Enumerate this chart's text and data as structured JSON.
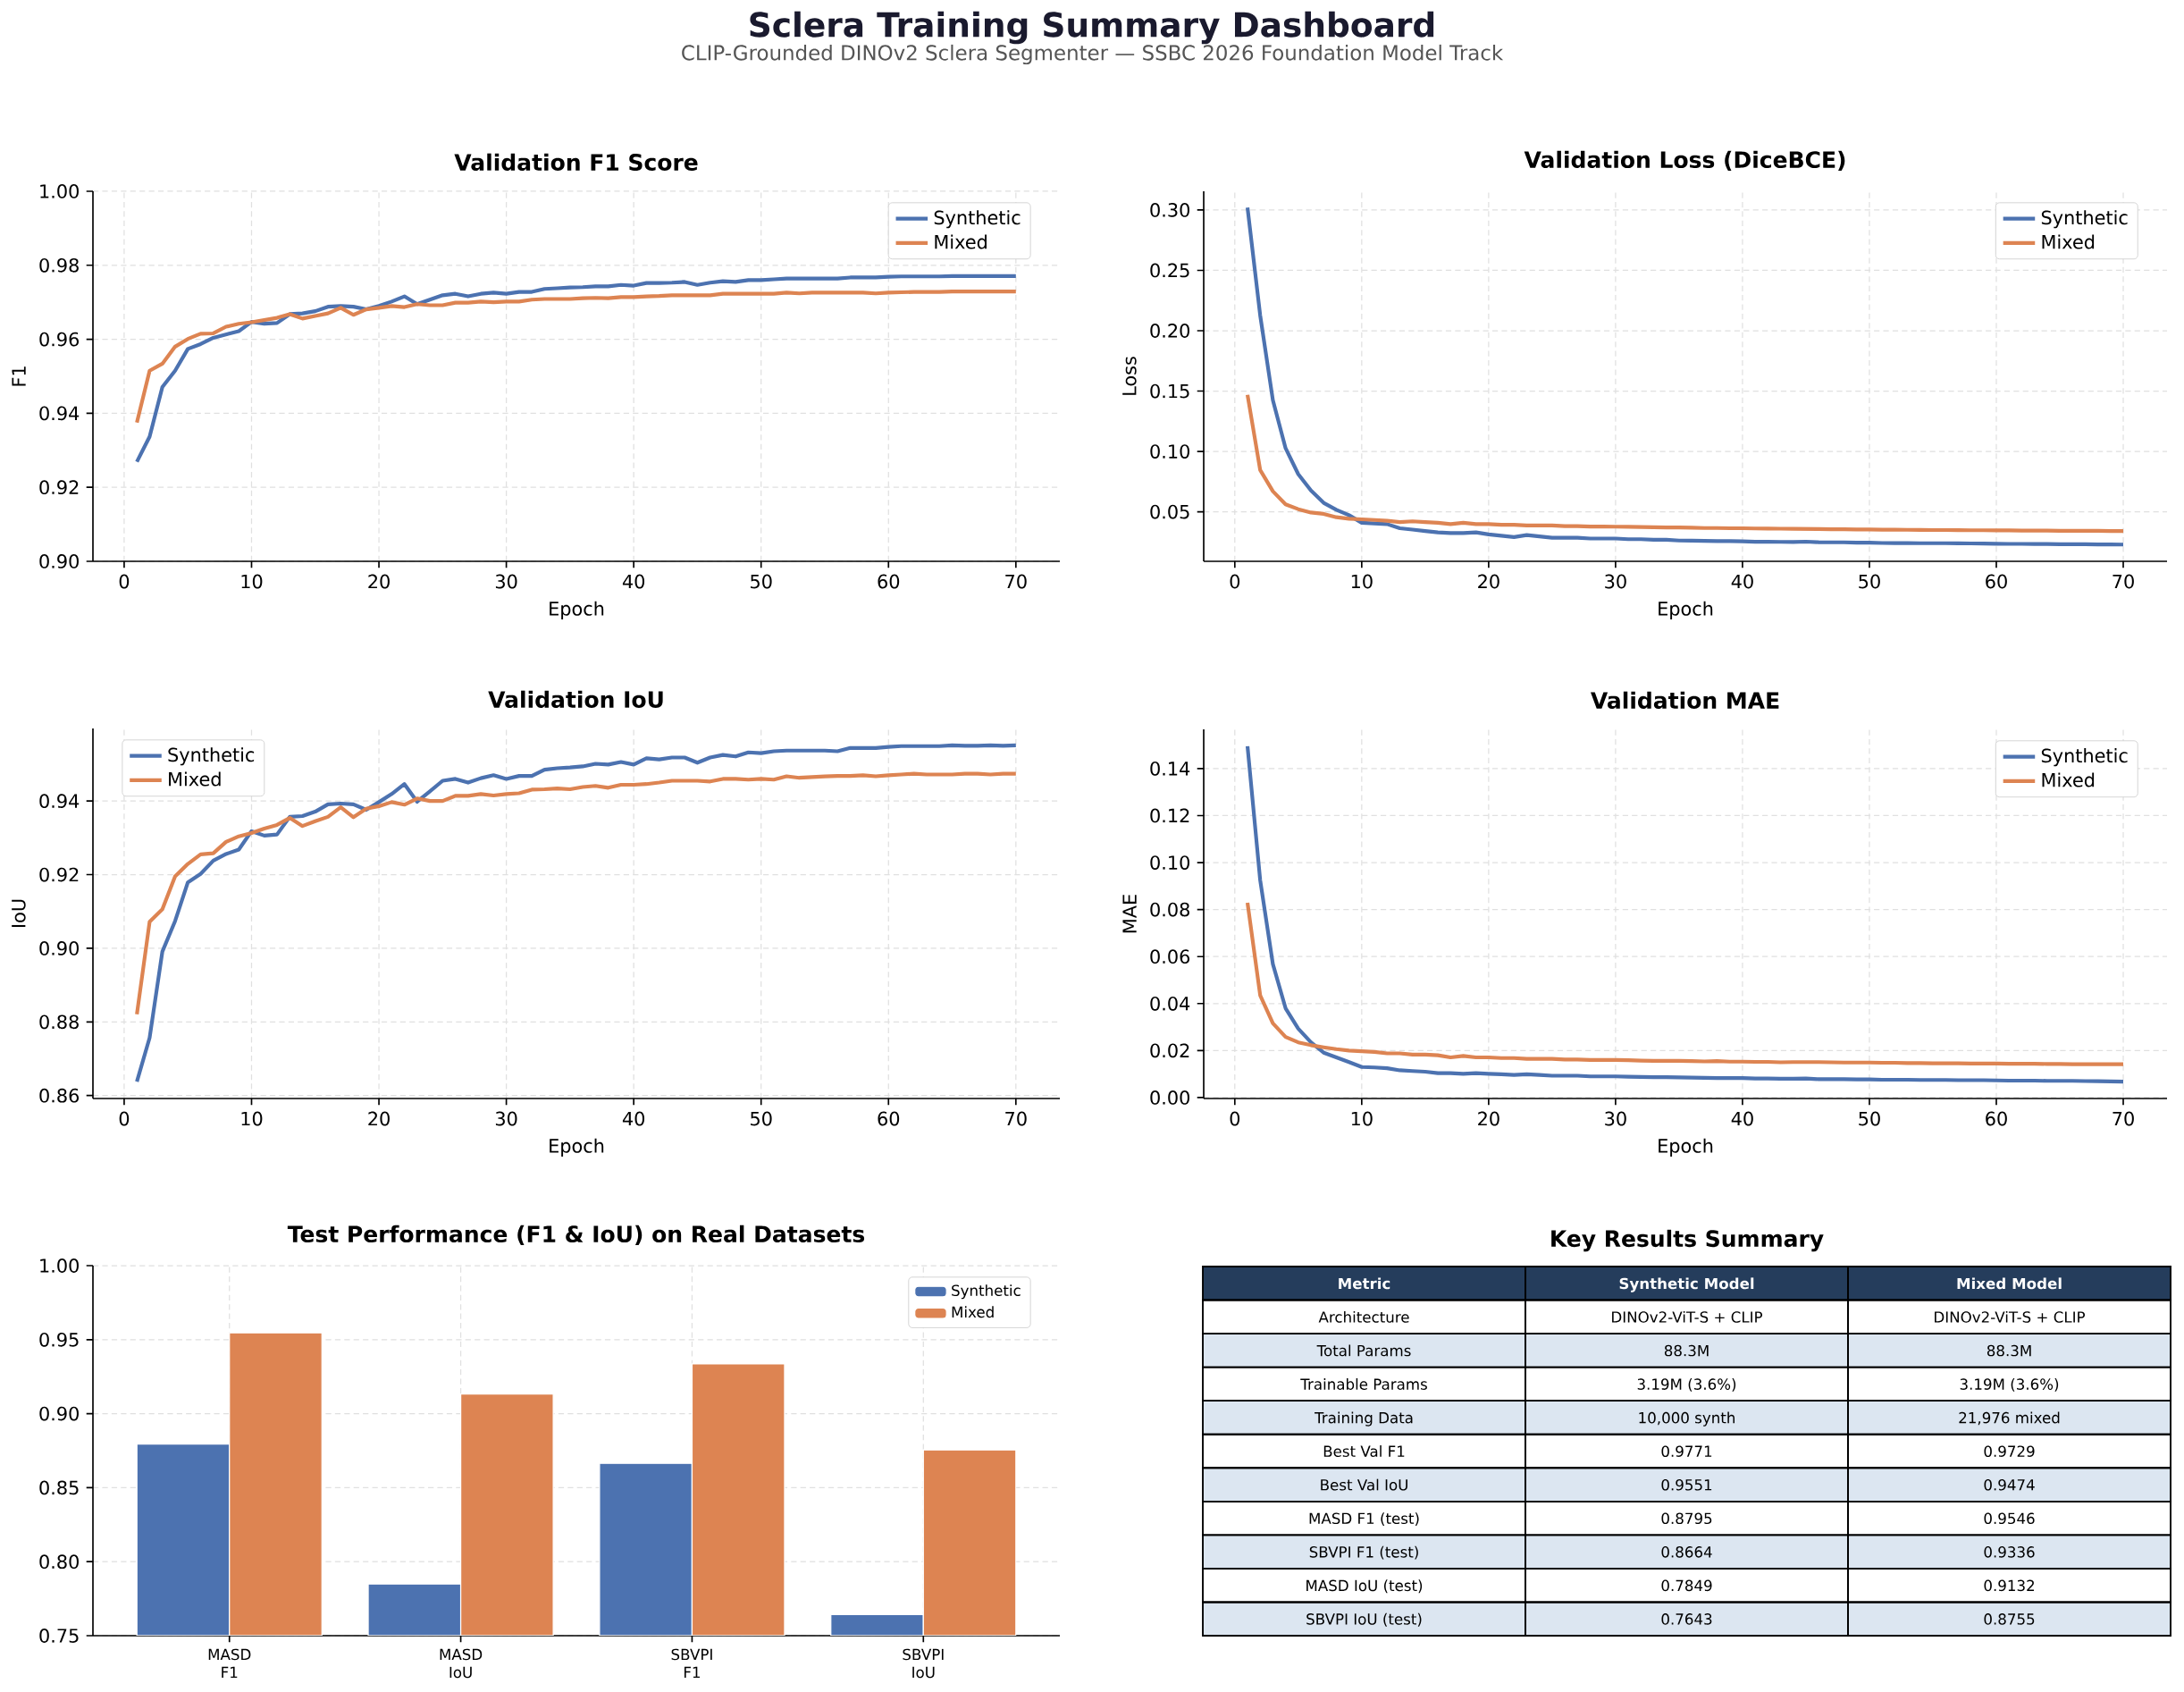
{
  "chart_data": [
    {
      "type": "other",
      "title": "Sclera Training Summary Dashboard",
      "subtitle": "CLIP-Grounded DINOv2 Sclera Segmenter — SSBC 2026 Foundation Model Track"
    },
    {
      "type": "line",
      "title": "Validation F1 Score",
      "xlabel": "Epoch",
      "ylabel": "F1",
      "x": [
        1,
        2,
        3,
        4,
        5,
        6,
        7,
        8,
        9,
        10,
        11,
        12,
        13,
        14,
        15,
        16,
        17,
        18,
        19,
        20,
        21,
        22,
        23,
        24,
        25,
        26,
        27,
        28,
        29,
        30,
        31,
        32,
        33,
        34,
        35,
        36,
        37,
        38,
        39,
        40,
        41,
        42,
        43,
        44,
        45,
        46,
        47,
        48,
        49,
        50,
        51,
        52,
        53,
        54,
        55,
        56,
        57,
        58,
        59,
        60,
        61,
        62,
        63,
        64,
        65,
        66,
        67,
        68,
        69,
        70
      ],
      "xlim": [
        -2.45,
        73.45
      ],
      "ylim": [
        0.9,
        1.0
      ],
      "xticks": [
        0,
        10,
        20,
        30,
        40,
        50,
        60,
        70
      ],
      "yticks": [
        {
          "value": 0.9,
          "label": "0.90"
        },
        0.92,
        0.94,
        0.96,
        0.98,
        {
          "value": 1.0,
          "label": "1.00"
        }
      ],
      "grid": true,
      "legend": "top right",
      "series": [
        {
          "name": "Synthetic",
          "color": "#4c72b0",
          "values": [
            0.9269,
            0.9337,
            0.9471,
            0.9515,
            0.9574,
            0.9587,
            0.9604,
            0.9613,
            0.9622,
            0.9647,
            0.9642,
            0.9644,
            0.9668,
            0.967,
            0.9676,
            0.9688,
            0.969,
            0.9688,
            0.9681,
            0.969,
            0.9702,
            0.9716,
            0.9695,
            0.9707,
            0.9719,
            0.9723,
            0.9716,
            0.9723,
            0.9726,
            0.9723,
            0.9728,
            0.9728,
            0.9736,
            0.9738,
            0.974,
            0.9741,
            0.9743,
            0.9743,
            0.9747,
            0.9745,
            0.9752,
            0.9752,
            0.9753,
            0.9755,
            0.9747,
            0.9753,
            0.9757,
            0.9755,
            0.976,
            0.976,
            0.9762,
            0.9764,
            0.9764,
            0.9764,
            0.9764,
            0.9764,
            0.9767,
            0.9767,
            0.9767,
            0.9769,
            0.977,
            0.977,
            0.977,
            0.977,
            0.9771,
            0.9771,
            0.9771,
            0.9771,
            0.9771,
            0.9771
          ]
        },
        {
          "name": "Mixed",
          "color": "#dd8452",
          "values": [
            0.9375,
            0.9515,
            0.9534,
            0.958,
            0.9601,
            0.9615,
            0.9616,
            0.9634,
            0.9642,
            0.9646,
            0.9652,
            0.9658,
            0.9668,
            0.9656,
            0.9663,
            0.967,
            0.9685,
            0.9666,
            0.9681,
            0.9685,
            0.969,
            0.9687,
            0.9695,
            0.9692,
            0.9692,
            0.9699,
            0.9699,
            0.9702,
            0.97,
            0.9702,
            0.9702,
            0.9707,
            0.9709,
            0.9709,
            0.9709,
            0.9711,
            0.9712,
            0.9711,
            0.9714,
            0.9714,
            0.9716,
            0.9717,
            0.9719,
            0.9719,
            0.9719,
            0.9719,
            0.9723,
            0.9723,
            0.9723,
            0.9723,
            0.9723,
            0.9726,
            0.9724,
            0.9726,
            0.9726,
            0.9726,
            0.9726,
            0.9726,
            0.9724,
            0.9726,
            0.9727,
            0.9728,
            0.9728,
            0.9728,
            0.9729,
            0.9729,
            0.9729,
            0.9729,
            0.9729,
            0.9729
          ]
        }
      ]
    },
    {
      "type": "line",
      "title": "Validation Loss (DiceBCE)",
      "xlabel": "Epoch",
      "ylabel": "Loss",
      "x": [
        1,
        2,
        3,
        4,
        5,
        6,
        7,
        8,
        9,
        10,
        11,
        12,
        13,
        14,
        15,
        16,
        17,
        18,
        19,
        20,
        21,
        22,
        23,
        24,
        25,
        26,
        27,
        28,
        29,
        30,
        31,
        32,
        33,
        34,
        35,
        36,
        37,
        38,
        39,
        40,
        41,
        42,
        43,
        44,
        45,
        46,
        47,
        48,
        49,
        50,
        51,
        52,
        53,
        54,
        55,
        56,
        57,
        58,
        59,
        60,
        61,
        62,
        63,
        64,
        65,
        66,
        67,
        68,
        69,
        70
      ],
      "xlim": [
        -2.45,
        73.45
      ],
      "ylim": [
        0.009,
        0.3155
      ],
      "xticks": [
        0,
        10,
        20,
        30,
        40,
        50,
        60,
        70
      ],
      "yticks": [
        0.05,
        {
          "value": 0.1,
          "label": "0.10"
        },
        0.15,
        {
          "value": 0.2,
          "label": "0.20"
        },
        0.25,
        {
          "value": 0.3,
          "label": "0.30"
        }
      ],
      "grid": true,
      "legend": "top right",
      "series": [
        {
          "name": "Synthetic",
          "color": "#4c72b0",
          "values": [
            0.302,
            0.2127,
            0.1424,
            0.1027,
            0.0812,
            0.0676,
            0.0574,
            0.0517,
            0.0472,
            0.0409,
            0.0404,
            0.0398,
            0.0364,
            0.0353,
            0.0341,
            0.033,
            0.0324,
            0.0324,
            0.033,
            0.0313,
            0.0302,
            0.0291,
            0.0307,
            0.0296,
            0.0285,
            0.0285,
            0.0285,
            0.0279,
            0.0279,
            0.0279,
            0.0273,
            0.0273,
            0.0268,
            0.0268,
            0.0262,
            0.0261,
            0.0259,
            0.0258,
            0.0257,
            0.0256,
            0.0252,
            0.0252,
            0.0251,
            0.025,
            0.0253,
            0.0248,
            0.0247,
            0.0247,
            0.0244,
            0.0244,
            0.0242,
            0.0241,
            0.0241,
            0.024,
            0.024,
            0.024,
            0.0239,
            0.0238,
            0.0237,
            0.0235,
            0.0234,
            0.0234,
            0.0233,
            0.0233,
            0.0232,
            0.0231,
            0.0231,
            0.023,
            0.023,
            0.0229
          ]
        },
        {
          "name": "Mixed",
          "color": "#dd8452",
          "values": [
            0.1469,
            0.0846,
            0.067,
            0.0562,
            0.0522,
            0.0494,
            0.0483,
            0.0455,
            0.0443,
            0.0438,
            0.0432,
            0.0426,
            0.0415,
            0.0421,
            0.0415,
            0.0409,
            0.0398,
            0.0409,
            0.0398,
            0.0398,
            0.0392,
            0.0392,
            0.0387,
            0.0387,
            0.0387,
            0.0381,
            0.0381,
            0.0378,
            0.0378,
            0.0377,
            0.0376,
            0.0374,
            0.0372,
            0.037,
            0.037,
            0.0368,
            0.0366,
            0.0366,
            0.0364,
            0.0364,
            0.0362,
            0.0361,
            0.036,
            0.0359,
            0.0358,
            0.0357,
            0.0355,
            0.0355,
            0.0354,
            0.0354,
            0.0352,
            0.0352,
            0.0351,
            0.035,
            0.0349,
            0.0349,
            0.0348,
            0.0347,
            0.0347,
            0.0346,
            0.0346,
            0.0345,
            0.0344,
            0.0344,
            0.0343,
            0.0343,
            0.0342,
            0.0342,
            0.0341,
            0.0341
          ]
        }
      ]
    },
    {
      "type": "line",
      "title": "Validation IoU",
      "xlabel": "Epoch",
      "ylabel": "IoU",
      "x": [
        1,
        2,
        3,
        4,
        5,
        6,
        7,
        8,
        9,
        10,
        11,
        12,
        13,
        14,
        15,
        16,
        17,
        18,
        19,
        20,
        21,
        22,
        23,
        24,
        25,
        26,
        27,
        28,
        29,
        30,
        31,
        32,
        33,
        34,
        35,
        36,
        37,
        38,
        39,
        40,
        41,
        42,
        43,
        44,
        45,
        46,
        47,
        48,
        49,
        50,
        51,
        52,
        53,
        54,
        55,
        56,
        57,
        58,
        59,
        60,
        61,
        62,
        63,
        64,
        65,
        66,
        67,
        68,
        69,
        70
      ],
      "xlim": [
        -2.45,
        73.45
      ],
      "ylim": [
        0.8592,
        0.9597
      ],
      "xticks": [
        0,
        10,
        20,
        30,
        40,
        50,
        60,
        70
      ],
      "yticks": [
        0.86,
        0.88,
        {
          "value": 0.9,
          "label": "0.90"
        },
        0.92,
        0.94
      ],
      "grid": true,
      "legend": "top left",
      "series": [
        {
          "name": "Synthetic",
          "color": "#4c72b0",
          "values": [
            0.8638,
            0.8757,
            0.8991,
            0.9074,
            0.9179,
            0.9202,
            0.9238,
            0.9256,
            0.9268,
            0.9318,
            0.9306,
            0.9309,
            0.9357,
            0.9359,
            0.9371,
            0.9391,
            0.9393,
            0.9391,
            0.9376,
            0.9397,
            0.9419,
            0.9446,
            0.9398,
            0.9426,
            0.9455,
            0.946,
            0.945,
            0.9462,
            0.947,
            0.946,
            0.9468,
            0.9468,
            0.9485,
            0.9489,
            0.9491,
            0.9494,
            0.9501,
            0.9499,
            0.9506,
            0.9499,
            0.9516,
            0.9513,
            0.9518,
            0.9518,
            0.9504,
            0.9518,
            0.9525,
            0.9521,
            0.9532,
            0.953,
            0.9535,
            0.9537,
            0.9537,
            0.9537,
            0.9537,
            0.9535,
            0.9544,
            0.9544,
            0.9544,
            0.9547,
            0.9549,
            0.9549,
            0.9549,
            0.9549,
            0.9551,
            0.955,
            0.955,
            0.9551,
            0.955,
            0.9551
          ]
        },
        {
          "name": "Mixed",
          "color": "#dd8452",
          "values": [
            0.8821,
            0.9072,
            0.9106,
            0.9195,
            0.9229,
            0.9255,
            0.9258,
            0.9289,
            0.9304,
            0.9313,
            0.9325,
            0.9335,
            0.9354,
            0.9332,
            0.9345,
            0.9357,
            0.9383,
            0.9356,
            0.9379,
            0.9386,
            0.9397,
            0.939,
            0.9407,
            0.94,
            0.94,
            0.9414,
            0.9414,
            0.9419,
            0.9415,
            0.9419,
            0.9421,
            0.9431,
            0.9432,
            0.9434,
            0.9432,
            0.9438,
            0.9441,
            0.9436,
            0.9444,
            0.9444,
            0.9446,
            0.945,
            0.9455,
            0.9455,
            0.9455,
            0.9453,
            0.946,
            0.946,
            0.9458,
            0.946,
            0.9458,
            0.9467,
            0.9463,
            0.9465,
            0.9467,
            0.9468,
            0.9468,
            0.947,
            0.9467,
            0.947,
            0.9472,
            0.9474,
            0.9472,
            0.9472,
            0.9472,
            0.9474,
            0.9474,
            0.9472,
            0.9474,
            0.9474
          ]
        }
      ]
    },
    {
      "type": "line",
      "title": "Validation MAE",
      "xlabel": "Epoch",
      "ylabel": "MAE",
      "x": [
        1,
        2,
        3,
        4,
        5,
        6,
        7,
        8,
        9,
        10,
        11,
        12,
        13,
        14,
        15,
        16,
        17,
        18,
        19,
        20,
        21,
        22,
        23,
        24,
        25,
        26,
        27,
        28,
        29,
        30,
        31,
        32,
        33,
        34,
        35,
        36,
        37,
        38,
        39,
        40,
        41,
        42,
        43,
        44,
        45,
        46,
        47,
        48,
        49,
        50,
        51,
        52,
        53,
        54,
        55,
        56,
        57,
        58,
        59,
        60,
        61,
        62,
        63,
        64,
        65,
        66,
        67,
        68,
        69,
        70
      ],
      "xlim": [
        -2.45,
        73.45
      ],
      "ylim": [
        -0.0004,
        0.1567
      ],
      "xticks": [
        0,
        10,
        20,
        30,
        40,
        50,
        60,
        70
      ],
      "yticks": [
        {
          "value": 0,
          "label": "0.00"
        },
        0.02,
        0.04,
        0.06,
        0.08,
        {
          "value": 0.1,
          "label": "0.10"
        },
        0.12,
        0.14
      ],
      "grid": true,
      "legend": "top right",
      "series": [
        {
          "name": "Synthetic",
          "color": "#4c72b0",
          "values": [
            0.1495,
            0.0925,
            0.0568,
            0.038,
            0.0293,
            0.0235,
            0.0191,
            0.0171,
            0.0151,
            0.013,
            0.0128,
            0.0125,
            0.0116,
            0.0113,
            0.011,
            0.0104,
            0.0104,
            0.0101,
            0.0104,
            0.0101,
            0.0099,
            0.0096,
            0.0099,
            0.0096,
            0.0093,
            0.0093,
            0.0093,
            0.009,
            0.009,
            0.009,
            0.0089,
            0.0088,
            0.0087,
            0.0087,
            0.0086,
            0.0085,
            0.0084,
            0.0083,
            0.0083,
            0.0083,
            0.0081,
            0.0081,
            0.008,
            0.008,
            0.0081,
            0.0078,
            0.0078,
            0.0078,
            0.0077,
            0.0077,
            0.0076,
            0.0076,
            0.0076,
            0.0075,
            0.0075,
            0.0075,
            0.0074,
            0.0074,
            0.0074,
            0.0073,
            0.0072,
            0.0072,
            0.0072,
            0.0071,
            0.0071,
            0.0071,
            0.007,
            0.007,
            0.0069,
            0.0068
          ]
        },
        {
          "name": "Mixed",
          "color": "#dd8452",
          "values": [
            0.0829,
            0.0435,
            0.0316,
            0.0258,
            0.0235,
            0.0223,
            0.0214,
            0.0206,
            0.02,
            0.0197,
            0.0194,
            0.0188,
            0.0188,
            0.0183,
            0.0183,
            0.018,
            0.0171,
            0.0177,
            0.0171,
            0.0171,
            0.0168,
            0.0168,
            0.0165,
            0.0165,
            0.0165,
            0.0162,
            0.0162,
            0.016,
            0.016,
            0.016,
            0.0159,
            0.0157,
            0.0156,
            0.0156,
            0.0156,
            0.0155,
            0.0154,
            0.0155,
            0.0153,
            0.0153,
            0.0152,
            0.0152,
            0.015,
            0.0151,
            0.0151,
            0.0151,
            0.015,
            0.0149,
            0.0149,
            0.0149,
            0.0148,
            0.0148,
            0.0147,
            0.0147,
            0.0146,
            0.0146,
            0.0146,
            0.0145,
            0.0145,
            0.0145,
            0.0144,
            0.0144,
            0.0144,
            0.0143,
            0.0143,
            0.0142,
            0.0142,
            0.0142,
            0.0142,
            0.0142
          ]
        }
      ]
    },
    {
      "type": "bar",
      "title": "Test Performance (F1 & IoU) on Real Datasets",
      "categories": [
        "MASD F1",
        "MASD IoU",
        "SBVPI F1",
        "SBVPI IoU"
      ],
      "ylim": [
        0.75,
        1.0
      ],
      "yticks": [
        0.75,
        {
          "value": 0.8,
          "label": "0.80"
        },
        0.85,
        {
          "value": 0.9,
          "label": "0.90"
        },
        0.95,
        {
          "value": 1.0,
          "label": "1.00"
        }
      ],
      "grid": true,
      "legend": "top right",
      "series": [
        {
          "name": "Synthetic",
          "color": "#4c72b0",
          "values": [
            0.8795,
            0.7849,
            0.8664,
            0.7643
          ]
        },
        {
          "name": "Mixed",
          "color": "#dd8452",
          "values": [
            0.9546,
            0.9132,
            0.9336,
            0.8755
          ]
        }
      ]
    },
    {
      "type": "other",
      "title": "Key Results Summary",
      "ylabel": "Metric",
      "categories": [
        "Synthetic Model",
        "Mixed Model"
      ],
      "y_categories": [
        "Architecture",
        "Total Params",
        "Trainable Params",
        "Training Data",
        "Best Val F1",
        "Best Val IoU",
        "MASD F1 (test)",
        "SBVPI F1 (test)",
        "MASD IoU (test)",
        "SBVPI IoU (test)"
      ],
      "cell_labels": [
        [
          "DINOv2-ViT-S + CLIP",
          "DINOv2-ViT-S + CLIP"
        ],
        [
          "88.3M",
          "88.3M"
        ],
        [
          "3.19M (3.6%)",
          "3.19M (3.6%)"
        ],
        [
          "10,000 synth",
          "21,976 mixed"
        ],
        [
          "0.9771",
          "0.9729"
        ],
        [
          "0.9551",
          "0.9474"
        ],
        [
          "0.8795",
          "0.9546"
        ],
        [
          "0.8664",
          "0.9336"
        ],
        [
          "0.7849",
          "0.9132"
        ],
        [
          "0.7643",
          "0.8755"
        ]
      ]
    }
  ]
}
